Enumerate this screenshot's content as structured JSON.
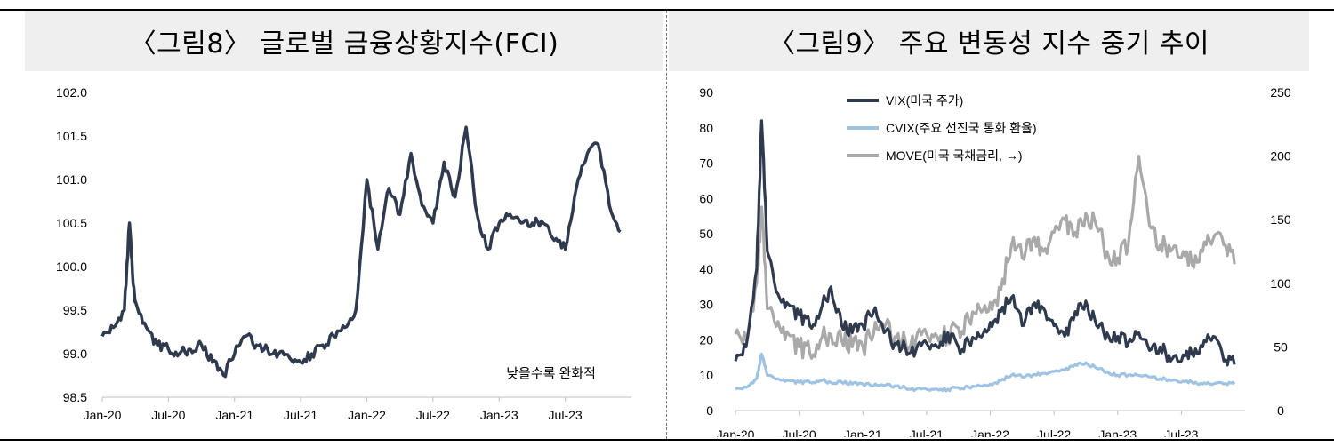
{
  "panel_left": {
    "title": "〈그림8〉 글로벌 금융상황지수(FCI)"
  },
  "panel_right": {
    "title": "〈그림9〉 주요 변동성 지수 중기 추이"
  },
  "colors": {
    "fci": "#2f3a4e",
    "vix": "#2f3a4e",
    "cvix": "#9fc3e3",
    "move": "#a9a9a9"
  },
  "chart_data": [
    {
      "type": "line",
      "title": "〈그림8〉 글로벌 금융상황지수(FCI)",
      "xlabel": "",
      "ylabel": "",
      "ylim": [
        98.5,
        102.0
      ],
      "yticks": [
        "102.0",
        "101.5",
        "101.0",
        "100.5",
        "100.0",
        "99.5",
        "99.0",
        "98.5"
      ],
      "x_tick_labels": [
        "Jan-20",
        "Jul-20",
        "Jan-21",
        "Jul-21",
        "Jan-22",
        "Jul-22",
        "Jan-23",
        "Jul-23"
      ],
      "annotation": "낮을수록 완화적",
      "grid": false,
      "series": [
        {
          "x": [
            "2020-01",
            "2020-02",
            "2020-03",
            "2020-03-15",
            "2020-03-25",
            "2020-04",
            "2020-05",
            "2020-06",
            "2020-07",
            "2020-08",
            "2020-09",
            "2020-10",
            "2020-11",
            "2020-12",
            "2021-01",
            "2021-02",
            "2021-03",
            "2021-04",
            "2021-05",
            "2021-06",
            "2021-07",
            "2021-08",
            "2021-09",
            "2021-10",
            "2021-11",
            "2021-12",
            "2022-01",
            "2022-02",
            "2022-03",
            "2022-04",
            "2022-05",
            "2022-06",
            "2022-07",
            "2022-08",
            "2022-09",
            "2022-10",
            "2022-11",
            "2022-12",
            "2023-01",
            "2023-02",
            "2023-03",
            "2023-04",
            "2023-05",
            "2023-06",
            "2023-07",
            "2023-08",
            "2023-09",
            "2023-10",
            "2023-11",
            "2023-12"
          ],
          "values": [
            99.2,
            99.3,
            99.5,
            100.5,
            99.8,
            99.6,
            99.3,
            99.1,
            99.05,
            99.0,
            99.05,
            99.1,
            98.9,
            98.75,
            99.0,
            99.2,
            99.1,
            99.05,
            99.0,
            98.95,
            98.9,
            99.0,
            99.1,
            99.2,
            99.3,
            99.5,
            101.0,
            100.2,
            100.9,
            100.6,
            101.3,
            100.7,
            100.5,
            101.2,
            100.8,
            101.6,
            100.6,
            100.2,
            100.5,
            100.6,
            100.5,
            100.5,
            100.5,
            100.3,
            100.2,
            100.9,
            101.3,
            101.4,
            100.7,
            100.4
          ]
        }
      ]
    },
    {
      "type": "line",
      "title": "〈그림9〉 주요 변동성 지수 중기 추이",
      "xlabel": "",
      "ylabel": "",
      "ylim": [
        0,
        90
      ],
      "y2lim": [
        0,
        250
      ],
      "yticks": [
        "90",
        "80",
        "70",
        "60",
        "50",
        "40",
        "30",
        "20",
        "10",
        "0"
      ],
      "y2ticks": [
        "250",
        "200",
        "150",
        "100",
        "50",
        "0"
      ],
      "x_tick_labels": [
        "Jan-20",
        "Jul-20",
        "Jan-21",
        "Jul-21",
        "Jan-22",
        "Jul-22",
        "Jan-23",
        "Jul-23"
      ],
      "legend_position": "top-left",
      "grid": false,
      "x": [
        "2020-01",
        "2020-02",
        "2020-03",
        "2020-03-15",
        "2020-04",
        "2020-05",
        "2020-06",
        "2020-07",
        "2020-08",
        "2020-09",
        "2020-10",
        "2020-11",
        "2020-12",
        "2021-01",
        "2021-02",
        "2021-03",
        "2021-04",
        "2021-05",
        "2021-06",
        "2021-07",
        "2021-08",
        "2021-09",
        "2021-10",
        "2021-11",
        "2021-12",
        "2022-01",
        "2022-02",
        "2022-03",
        "2022-04",
        "2022-05",
        "2022-06",
        "2022-07",
        "2022-08",
        "2022-09",
        "2022-10",
        "2022-11",
        "2022-12",
        "2023-01",
        "2023-02",
        "2023-03",
        "2023-04",
        "2023-05",
        "2023-06",
        "2023-07",
        "2023-08",
        "2023-09",
        "2023-10",
        "2023-11",
        "2023-12"
      ],
      "series": [
        {
          "name": "VIX(미국 주가)",
          "axis": "left",
          "values": [
            14,
            18,
            40,
            82,
            45,
            33,
            30,
            27,
            24,
            28,
            35,
            24,
            22,
            24,
            28,
            22,
            19,
            18,
            17,
            19,
            18,
            22,
            18,
            19,
            21,
            25,
            28,
            32,
            24,
            30,
            29,
            24,
            21,
            28,
            31,
            24,
            22,
            21,
            19,
            22,
            17,
            18,
            14,
            14,
            16,
            18,
            21,
            14,
            13
          ]
        },
        {
          "name": "CVIX(주요 선진국 통화 환율)",
          "axis": "left",
          "values": [
            6,
            6.5,
            9,
            16,
            10,
            9,
            8.5,
            8,
            8,
            8.5,
            8,
            8,
            7.5,
            7.5,
            7,
            7,
            7,
            6.5,
            6,
            6,
            6,
            6,
            6.5,
            6.5,
            7,
            7.5,
            8.5,
            10,
            9.5,
            10,
            10.5,
            11,
            11.5,
            13,
            13.5,
            12,
            11,
            10,
            10,
            10,
            9.5,
            9,
            8.5,
            8,
            8,
            7.5,
            7.5,
            7.5,
            7.5
          ]
        },
        {
          "name": "MOVE(미국 국채금리, →)",
          "axis": "right",
          "values": [
            60,
            55,
            100,
            160,
            80,
            70,
            60,
            50,
            45,
            55,
            60,
            55,
            50,
            50,
            60,
            65,
            58,
            55,
            56,
            60,
            58,
            60,
            65,
            70,
            80,
            85,
            95,
            130,
            120,
            135,
            125,
            140,
            150,
            140,
            155,
            145,
            125,
            120,
            130,
            200,
            145,
            130,
            125,
            120,
            115,
            125,
            135,
            130,
            115
          ]
        }
      ]
    }
  ]
}
